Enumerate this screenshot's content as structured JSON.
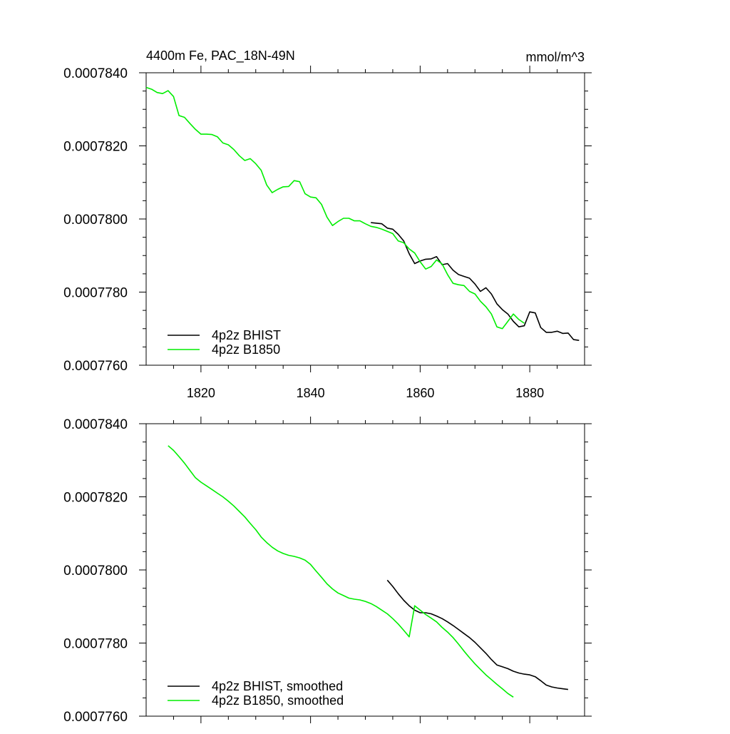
{
  "chart_data": [
    {
      "type": "line",
      "title_left": "4400m Fe, PAC_18N-49N",
      "title_right": "mmol/m^3",
      "xlim": [
        1810,
        1890
      ],
      "ylim": [
        0.000776,
        0.000784
      ],
      "xticks": [
        1820,
        1840,
        1860,
        1880
      ],
      "xtick_labels": [
        "1820",
        "1840",
        "1860",
        "1880"
      ],
      "yticks": [
        0.000776,
        0.000778,
        0.00078,
        0.000782,
        0.000784
      ],
      "ytick_labels": [
        "0.0007760",
        "0.0007780",
        "0.0007800",
        "0.0007820",
        "0.0007840"
      ],
      "show_xtick_labels": true,
      "legend_position": "bottom-left",
      "series": [
        {
          "name": "4p2z BHIST",
          "color": "#000000",
          "x": [
            1851,
            1853,
            1854,
            1855,
            1856,
            1857,
            1858,
            1859,
            1860,
            1861,
            1862,
            1863,
            1864,
            1865,
            1866,
            1867,
            1868,
            1869,
            1870,
            1871,
            1872,
            1873,
            1874,
            1875,
            1876,
            1877,
            1878,
            1879,
            1880,
            1881,
            1882,
            1883,
            1884,
            1885,
            1886,
            1887,
            1888,
            1889
          ],
          "y": [
            0.0007799,
            0.00077987,
            0.00077975,
            0.00077972,
            0.00077958,
            0.0007794,
            0.00077905,
            0.00077878,
            0.00077885,
            0.0007789,
            0.00077891,
            0.00077897,
            0.00077875,
            0.00077878,
            0.0007786,
            0.00077848,
            0.00077843,
            0.00077838,
            0.00077822,
            0.00077802,
            0.00077812,
            0.00077795,
            0.00077768,
            0.00077752,
            0.0007774,
            0.0007772,
            0.00077705,
            0.00077708,
            0.00077746,
            0.00077743,
            0.00077703,
            0.0007769,
            0.0007769,
            0.00077693,
            0.00077687,
            0.00077688,
            0.0007767,
            0.00077668
          ]
        },
        {
          "name": "4p2z B1850",
          "color": "#00ee00",
          "x": [
            1810,
            1811,
            1812,
            1813,
            1814,
            1815,
            1816,
            1817,
            1818,
            1819,
            1820,
            1821,
            1822,
            1823,
            1824,
            1825,
            1826,
            1827,
            1828,
            1829,
            1830,
            1831,
            1832,
            1833,
            1834,
            1835,
            1836,
            1837,
            1838,
            1839,
            1840,
            1841,
            1842,
            1843,
            1844,
            1845,
            1846,
            1847,
            1848,
            1849,
            1850,
            1851,
            1852,
            1853,
            1854,
            1855,
            1856,
            1857,
            1858,
            1859,
            1860,
            1861,
            1862,
            1863,
            1864,
            1865,
            1866,
            1867,
            1868,
            1869,
            1870,
            1871,
            1872,
            1873,
            1874,
            1875,
            1876,
            1877,
            1878,
            1879
          ],
          "y": [
            0.0007836,
            0.00078355,
            0.00078346,
            0.00078343,
            0.00078351,
            0.00078335,
            0.00078283,
            0.00078278,
            0.00078261,
            0.00078245,
            0.00078232,
            0.00078232,
            0.00078231,
            0.00078225,
            0.00078208,
            0.00078203,
            0.0007819,
            0.00078173,
            0.0007816,
            0.00078165,
            0.00078151,
            0.00078133,
            0.00078093,
            0.00078072,
            0.00078081,
            0.00078088,
            0.00078089,
            0.00078105,
            0.00078102,
            0.00078069,
            0.0007806,
            0.00078058,
            0.0007804,
            0.00078005,
            0.00077982,
            0.00077993,
            0.00078002,
            0.00078002,
            0.00077995,
            0.00077995,
            0.00077987,
            0.0007798,
            0.00077977,
            0.00077972,
            0.00077966,
            0.0007796,
            0.0007794,
            0.00077935,
            0.00077918,
            0.00077907,
            0.00077883,
            0.00077863,
            0.0007787,
            0.00077888,
            0.00077877,
            0.00077848,
            0.00077824,
            0.0007782,
            0.00077818,
            0.00077802,
            0.00077795,
            0.00077775,
            0.0007776,
            0.0007774,
            0.00077705,
            0.000777,
            0.0007772,
            0.0007774,
            0.00077725,
            0.00077715
          ]
        }
      ]
    },
    {
      "type": "line",
      "title_left": "",
      "title_right": "",
      "xlim": [
        1810,
        1890
      ],
      "ylim": [
        0.000776,
        0.000784
      ],
      "xticks": [
        1820,
        1840,
        1860,
        1880
      ],
      "xtick_labels": [
        "",
        "",
        "",
        ""
      ],
      "yticks": [
        0.000776,
        0.000778,
        0.00078,
        0.000782,
        0.000784
      ],
      "ytick_labels": [
        "0.0007760",
        "0.0007780",
        "0.0007800",
        "0.0007820",
        "0.0007840"
      ],
      "show_xtick_labels": false,
      "legend_position": "bottom-left",
      "series": [
        {
          "name": "4p2z BHIST, smoothed",
          "color": "#000000",
          "x": [
            1854,
            1855,
            1856,
            1857,
            1858,
            1859,
            1860,
            1861,
            1862,
            1863,
            1864,
            1865,
            1866,
            1867,
            1868,
            1869,
            1870,
            1871,
            1872,
            1873,
            1874,
            1875,
            1876,
            1877,
            1878,
            1879,
            1880,
            1881,
            1882,
            1883,
            1884,
            1885,
            1886,
            1887
          ],
          "y": [
            0.00077972,
            0.00077955,
            0.00077935,
            0.00077917,
            0.00077902,
            0.0007789,
            0.00077883,
            0.00077883,
            0.0007788,
            0.00077874,
            0.00077867,
            0.00077858,
            0.00077848,
            0.00077837,
            0.00077826,
            0.00077815,
            0.00077802,
            0.00077787,
            0.00077772,
            0.00077755,
            0.0007774,
            0.00077735,
            0.0007773,
            0.00077723,
            0.00077718,
            0.00077715,
            0.00077713,
            0.00077708,
            0.00077697,
            0.00077685,
            0.0007768,
            0.00077677,
            0.00077675,
            0.00077673
          ]
        },
        {
          "name": "4p2z B1850, smoothed",
          "color": "#00ee00",
          "x": [
            1814,
            1815,
            1816,
            1817,
            1818,
            1819,
            1820,
            1821,
            1822,
            1823,
            1824,
            1825,
            1826,
            1827,
            1828,
            1829,
            1830,
            1831,
            1832,
            1833,
            1834,
            1835,
            1836,
            1837,
            1838,
            1839,
            1840,
            1841,
            1842,
            1843,
            1844,
            1845,
            1846,
            1847,
            1848,
            1849,
            1850,
            1851,
            1852,
            1853,
            1854,
            1855,
            1856,
            1857,
            1858,
            1859,
            1860,
            1861,
            1862,
            1863,
            1864,
            1865,
            1866,
            1867,
            1868,
            1869,
            1870,
            1871,
            1872,
            1873,
            1874,
            1875,
            1876,
            1877
          ],
          "y": [
            0.0007834,
            0.00078327,
            0.0007831,
            0.00078292,
            0.00078272,
            0.00078252,
            0.0007824,
            0.0007823,
            0.0007822,
            0.0007821,
            0.000782,
            0.00078188,
            0.00078175,
            0.0007816,
            0.00078145,
            0.00078127,
            0.0007811,
            0.0007809,
            0.00078075,
            0.00078062,
            0.00078052,
            0.00078045,
            0.0007804,
            0.00078037,
            0.00078033,
            0.00078027,
            0.00078015,
            0.00077997,
            0.0007798,
            0.00077962,
            0.00077948,
            0.00077937,
            0.0007793,
            0.00077923,
            0.0007792,
            0.00077918,
            0.00077914,
            0.00077908,
            0.000779,
            0.0007789,
            0.0007788,
            0.00077867,
            0.00077852,
            0.00077835,
            0.00077817,
            0.00077902,
            0.0007789,
            0.00077878,
            0.00077868,
            0.00077858,
            0.00077843,
            0.0007783,
            0.00077815,
            0.00077797,
            0.00077778,
            0.0007776,
            0.00077743,
            0.00077728,
            0.00077713,
            0.000777,
            0.00077687,
            0.00077675,
            0.00077662,
            0.00077652
          ]
        }
      ]
    }
  ]
}
